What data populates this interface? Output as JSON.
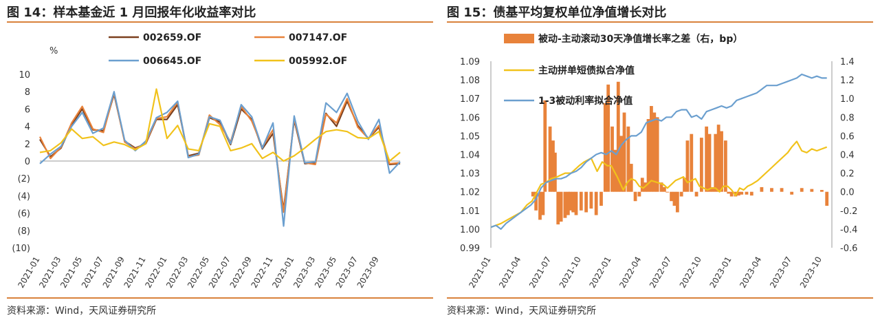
{
  "charts": [
    {
      "title": "图 14：样本基金近 1 月回报年化收益率对比",
      "source": "资料来源：Wind，天风证券研究所",
      "chart_data": {
        "type": "line",
        "unit_label": "%",
        "ylim": [
          -10,
          10
        ],
        "yticks": [
          10,
          8,
          6,
          4,
          2,
          0,
          -2,
          -4,
          -6,
          -8,
          -10
        ],
        "ytick_labels": [
          "10",
          "8",
          "6",
          "4",
          "2",
          "0",
          "(2)",
          "(4)",
          "(6)",
          "(8)",
          "(10)"
        ],
        "x": [
          "2021-01",
          "2021-02",
          "2021-03",
          "2021-04",
          "2021-05",
          "2021-06",
          "2021-07",
          "2021-08",
          "2021-09",
          "2021-10",
          "2021-11",
          "2021-12",
          "2022-01",
          "2022-02",
          "2022-03",
          "2022-04",
          "2022-05",
          "2022-06",
          "2022-07",
          "2022-08",
          "2022-09",
          "2022-10",
          "2022-11",
          "2022-12",
          "2023-01",
          "2023-02",
          "2023-03",
          "2023-04",
          "2023-05",
          "2023-06",
          "2023-07",
          "2023-08",
          "2023-09",
          "2023-10",
          "2023-11"
        ],
        "xtick_labels": [
          "2021-01",
          "2021-03",
          "2021-05",
          "2021-07",
          "2021-09",
          "2021-11",
          "2022-01",
          "2022-03",
          "2022-05",
          "2022-07",
          "2022-09",
          "2022-11",
          "2023-01",
          "2023-03",
          "2023-05",
          "2023-07",
          "2023-09"
        ],
        "series": [
          {
            "name": "002659.OF",
            "color": "#7b3f1d",
            "values": [
              2.5,
              0.5,
              1.5,
              4.2,
              6.0,
              3.6,
              3.5,
              7.7,
              2.3,
              1.5,
              2.0,
              4.8,
              4.8,
              6.5,
              0.6,
              0.9,
              5.0,
              4.5,
              1.9,
              6.0,
              4.8,
              1.4,
              3.2,
              -5.6,
              4.7,
              -0.3,
              -0.2,
              5.5,
              4.0,
              6.9,
              4.1,
              2.6,
              3.9,
              -0.4,
              -0.3
            ]
          },
          {
            "name": "007147.OF",
            "color": "#e8823a",
            "values": [
              2.8,
              0.3,
              1.6,
              4.4,
              6.3,
              3.7,
              3.3,
              7.9,
              2.2,
              1.4,
              2.1,
              4.9,
              5.1,
              6.8,
              0.5,
              0.7,
              5.3,
              4.2,
              2.2,
              6.3,
              4.6,
              1.6,
              3.6,
              -5.9,
              4.9,
              -0.2,
              -0.4,
              5.4,
              4.4,
              7.2,
              3.9,
              2.6,
              4.1,
              -0.3,
              -0.2
            ]
          },
          {
            "name": "006645.OF",
            "color": "#6b9fcf",
            "values": [
              -0.3,
              0.8,
              1.7,
              4.0,
              5.6,
              3.2,
              3.8,
              8.0,
              2.4,
              1.2,
              2.3,
              5.0,
              5.6,
              6.9,
              0.4,
              0.8,
              5.1,
              4.7,
              2.0,
              6.5,
              5.1,
              1.5,
              4.4,
              -7.5,
              5.2,
              -0.2,
              -0.1,
              6.7,
              5.6,
              7.8,
              4.6,
              2.5,
              4.8,
              -1.4,
              -0.1
            ]
          },
          {
            "name": "005992.OF",
            "color": "#f1c21b",
            "values": [
              1.0,
              1.2,
              2.1,
              3.7,
              2.6,
              2.8,
              1.8,
              2.2,
              1.9,
              1.3,
              2.0,
              8.3,
              2.6,
              4.1,
              1.4,
              1.2,
              4.3,
              4.0,
              1.2,
              1.5,
              2.0,
              0.3,
              1.0,
              0.0,
              0.6,
              1.5,
              2.5,
              3.4,
              3.6,
              3.4,
              2.7,
              2.6,
              3.4,
              0.0,
              1.0
            ]
          }
        ]
      }
    },
    {
      "title": "图 15：债基平均复权单位净值增长对比",
      "source": "资料来源：Wind，天风证券研究所",
      "chart_data": {
        "type": "line+bar",
        "ylim_left": [
          0.99,
          1.09
        ],
        "yticks_left": [
          "0.99",
          "1.00",
          "1.01",
          "1.02",
          "1.03",
          "1.04",
          "1.05",
          "1.06",
          "1.07",
          "1.08",
          "1.09"
        ],
        "ylim_right": [
          -0.6,
          1.4
        ],
        "yticks_right": [
          "-0.6",
          "-0.4",
          "-0.2",
          "0.0",
          "0.2",
          "0.4",
          "0.6",
          "0.8",
          "1.0",
          "1.2",
          "1.4"
        ],
        "xlim": [
          "2021-01",
          "2023-11"
        ],
        "xtick_labels": [
          "2021-01",
          "2021-04",
          "2021-07",
          "2021-10",
          "2022-01",
          "2022-04",
          "2022-07",
          "2022-10",
          "2023-01",
          "2023-04",
          "2023-07",
          "2023-10"
        ],
        "bars": {
          "name": "被动-主动滚动30天净值增长率之差（右，bp）",
          "color": "#e8823a",
          "x": [
            4.2,
            4.5,
            4.9,
            5.2,
            5.4,
            5.9,
            6.2,
            6.4,
            6.7,
            7.0,
            7.4,
            7.7,
            7.9,
            8.2,
            8.5,
            9.0,
            9.5,
            10.0,
            10.5,
            11.0,
            11.4,
            11.7,
            12.1,
            12.4,
            12.7,
            13.0,
            13.3,
            13.7,
            14.0,
            14.4,
            14.8,
            15.1,
            15.4,
            15.7,
            16.0,
            16.3,
            16.6,
            17.0,
            17.3,
            17.6,
            18.0,
            18.3,
            18.6,
            19.0,
            19.3,
            19.6,
            20.0,
            20.5,
            21.0,
            21.5,
            21.8,
            22.1,
            22.4,
            22.7,
            23.0,
            23.4,
            23.7,
            24.0,
            24.4,
            24.7,
            25.0,
            25.5,
            26.0,
            27.0,
            28.0,
            29.0,
            30.0,
            31.0,
            32.0,
            33.0,
            33.5
          ],
          "values": [
            -0.05,
            -0.2,
            -0.3,
            -0.25,
            0.98,
            0.7,
            0.55,
            0.42,
            -0.35,
            -0.32,
            -0.28,
            -0.25,
            -0.2,
            -0.22,
            -0.25,
            -0.2,
            -0.22,
            -0.18,
            -0.25,
            -0.15,
            0.95,
            1.15,
            0.7,
            0.45,
            1.18,
            0.6,
            0.85,
            0.7,
            0.3,
            -0.1,
            -0.05,
            0.15,
            0.1,
            0.78,
            0.92,
            0.85,
            0.8,
            0.1,
            0.05,
            0.0,
            -0.1,
            -0.15,
            -0.22,
            -0.05,
            0.15,
            0.55,
            0.62,
            -0.05,
            0.58,
            0.7,
            0.62,
            0.05,
            0.62,
            0.72,
            0.65,
            0.55,
            -0.02,
            -0.05,
            -0.05,
            -0.04,
            -0.03,
            -0.03,
            -0.04,
            0.05,
            0.04,
            0.04,
            -0.03,
            0.04,
            0.03,
            0.02,
            -0.15
          ]
        },
        "series": [
          {
            "name": "主动拼单短债拟合净值",
            "color": "#f1c21b",
            "x": [
              0,
              1,
              2,
              3,
              3.6,
              4.1,
              4.6,
              5,
              5.5,
              6,
              6.6,
              7,
              7.4,
              8,
              8.4,
              8.8,
              9.3,
              10,
              10.6,
              11.1,
              11.6,
              12,
              12.6,
              13.2,
              13.6,
              14,
              14.4,
              14.8,
              15.2,
              15.6,
              16,
              16.6,
              17.2,
              17.6,
              18,
              18.4,
              18.8,
              19.2,
              19.6,
              20.0,
              20.4,
              20.8,
              21.2,
              21.6,
              22,
              22.4,
              22.8,
              23.2,
              23.6,
              24,
              24.4,
              24.8,
              25.2,
              25.6,
              26,
              26.6,
              27.2,
              28,
              28.6,
              29.2,
              29.6,
              30.0,
              30.5,
              31,
              31.5,
              32,
              32.5,
              33,
              33.5
            ],
            "values": [
              1.001,
              1.003,
              1.006,
              1.009,
              1.013,
              1.015,
              1.02,
              1.024,
              1.025,
              1.027,
              1.028,
              1.029,
              1.03,
              1.03,
              1.032,
              1.034,
              1.036,
              1.038,
              1.031,
              1.036,
              1.034,
              1.034,
              1.028,
              1.021,
              1.025,
              1.027,
              1.026,
              1.023,
              1.022,
              1.024,
              1.026,
              1.025,
              1.024,
              1.022,
              1.024,
              1.026,
              1.027,
              1.028,
              1.025,
              1.026,
              1.027,
              1.023,
              1.022,
              1.021,
              1.022,
              1.022,
              1.02,
              1.023,
              1.023,
              1.021,
              1.018,
              1.022,
              1.021,
              1.023,
              1.024,
              1.026,
              1.029,
              1.033,
              1.036,
              1.039,
              1.041,
              1.044,
              1.047,
              1.042,
              1.041,
              1.043,
              1.042,
              1.043,
              1.044
            ]
          },
          {
            "name": "1-3被动利率拟合净值",
            "color": "#6b9fcf",
            "x": [
              0,
              0.5,
              1,
              1.5,
              2,
              2.5,
              3,
              3.5,
              4,
              4.5,
              5,
              5.5,
              6,
              6.5,
              7,
              7.5,
              8,
              8.5,
              9,
              9.5,
              10,
              10.5,
              11,
              11.5,
              12,
              12.5,
              13,
              13.5,
              14,
              14.5,
              15,
              15.5,
              16,
              16.5,
              17,
              17.5,
              18,
              18.5,
              19,
              19.5,
              20,
              20.5,
              21,
              21.5,
              22,
              22.5,
              23,
              23.5,
              24,
              24.5,
              25,
              25.5,
              26,
              26.5,
              27,
              27.5,
              28,
              28.5,
              29,
              29.5,
              30,
              30.5,
              31,
              31.5,
              32,
              32.5,
              33,
              33.5
            ],
            "values": [
              1.001,
              1.002,
              1.0,
              1.003,
              1.005,
              1.007,
              1.009,
              1.011,
              1.013,
              1.016,
              1.022,
              1.025,
              1.026,
              1.027,
              1.027,
              1.028,
              1.03,
              1.031,
              1.033,
              1.036,
              1.038,
              1.04,
              1.041,
              1.04,
              1.042,
              1.04,
              1.045,
              1.048,
              1.05,
              1.05,
              1.052,
              1.057,
              1.058,
              1.059,
              1.058,
              1.06,
              1.06,
              1.063,
              1.064,
              1.064,
              1.06,
              1.061,
              1.059,
              1.063,
              1.064,
              1.065,
              1.066,
              1.065,
              1.066,
              1.069,
              1.07,
              1.071,
              1.072,
              1.073,
              1.075,
              1.077,
              1.077,
              1.077,
              1.078,
              1.079,
              1.08,
              1.081,
              1.083,
              1.082,
              1.081,
              1.082,
              1.081,
              1.081
            ]
          }
        ]
      }
    }
  ]
}
